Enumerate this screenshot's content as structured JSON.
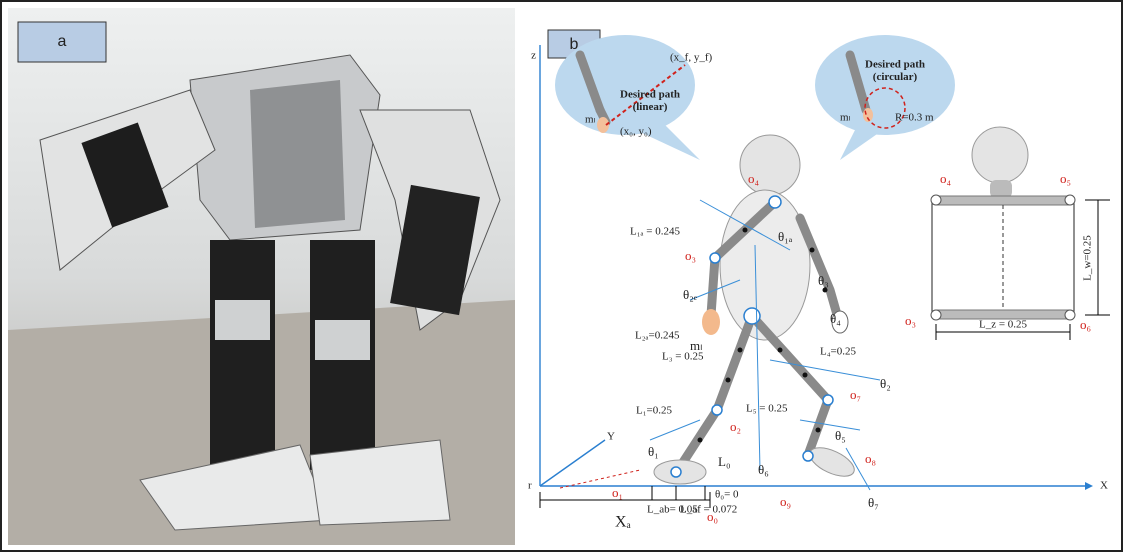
{
  "panel_a": {
    "label": "a"
  },
  "panel_b": {
    "label": "b",
    "axes": {
      "z": "z",
      "x": "X",
      "y": "Y",
      "origin": "r"
    },
    "bubble_linear": {
      "title": "Desired path\n(linear)",
      "mass": "mₗ",
      "end": "(x_f, y_f)",
      "start": "(x₀, y₀)"
    },
    "bubble_circular": {
      "title": "Desired path\n(circular)",
      "mass": "mₗ",
      "radius": "R=0.3 m"
    },
    "body": {
      "o4": "o₄",
      "theta1a": "θ₁ₐ",
      "L1a": "L₁ₐ = 0.245",
      "o3": "o₃",
      "theta3": "θ₃",
      "theta2e": "θ₂ₑ",
      "L2a": "L₂ₐ=0.245",
      "ml": "mₗ",
      "theta4": "θ₄",
      "L3": "L₃ = 0.25",
      "L4": "L₄=0.25",
      "theta2": "θ₂",
      "o7": "o₇",
      "L1": "L₁=0.25",
      "L5": "L₅ = 0.25",
      "o2": "o₂",
      "theta5": "θ₅",
      "theta1": "θ₁",
      "L0": "L₀",
      "theta6": "θ₆",
      "o8": "o₈",
      "o1": "o₁",
      "theta0": "θ₀= 0",
      "o0": "o₀",
      "o9": "o₉",
      "theta7": "θ₇",
      "Lab": "L_ab= 0.05",
      "Laf": "L_af = 0.072",
      "Xa": "Xₐ"
    },
    "front": {
      "o4": "o₄",
      "o5": "o₅",
      "o3": "o₃",
      "o6": "o₆",
      "Lw": "L_w=0.25",
      "Lz": "L_z = 0.25"
    }
  }
}
